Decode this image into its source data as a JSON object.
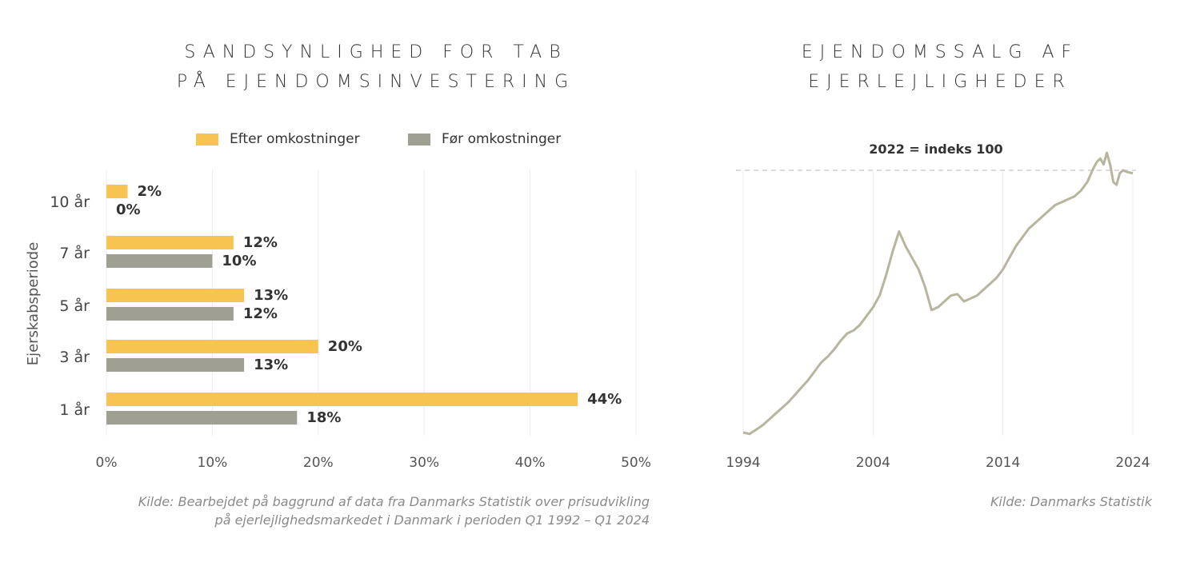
{
  "colors": {
    "after": "#F8C451",
    "before": "#A09F93",
    "line": "#B8B59E",
    "grid": "#ececec",
    "dashed": "#cfcfcf"
  },
  "left": {
    "title_lines": [
      "SANDSYNLIGHED FOR TAB",
      "PÅ EJENDOMSINVESTERING"
    ],
    "legend": [
      "Efter omkostninger",
      "Før omkostninger"
    ],
    "source_lines": [
      "Kilde: Bearbejdet på baggrund af data fra Danmarks Statistik over prisudvikling",
      "på ejerlejlighedsmarkedet i Danmark i perioden Q1  1992 – Q1 2024"
    ]
  },
  "right": {
    "title_lines": [
      "EJENDOMSSALG AF",
      "EJERLEJLIGHEDER"
    ],
    "annotation": "2022 = indeks 100",
    "source": "Kilde: Danmarks Statistik"
  },
  "chart_data": [
    {
      "type": "bar",
      "orientation": "horizontal",
      "title": "SANDSYNLIGHED FOR TAB PÅ EJENDOMSINVESTERING",
      "categories": [
        "10 år",
        "7 år",
        "5 år",
        "3 år",
        "1 år"
      ],
      "series": [
        {
          "name": "Efter omkostninger",
          "values": [
            2,
            12,
            13,
            20,
            44.5
          ],
          "labels": [
            "2%",
            "12%",
            "13%",
            "20%",
            "44%"
          ]
        },
        {
          "name": "Før omkostninger",
          "values": [
            0,
            10,
            12,
            13,
            18
          ],
          "labels": [
            "0%",
            "10%",
            "12%",
            "13%",
            "18%"
          ]
        }
      ],
      "ylabel": "Ejerskabsperiode",
      "xlim": [
        0,
        50
      ],
      "xticks": [
        0,
        10,
        20,
        30,
        40,
        50
      ],
      "xtick_labels": [
        "0%",
        "10%",
        "20%",
        "30%",
        "40%",
        "50%"
      ],
      "grid": "vertical",
      "legend_position": "top"
    },
    {
      "type": "line",
      "title": "EJENDOMSSALG AF EJERLEJLIGHEDER",
      "xlim": [
        1994,
        2024.5
      ],
      "ylim": [
        10,
        105
      ],
      "xticks": [
        1994,
        2004,
        2014,
        2024
      ],
      "xtick_labels": [
        "1994",
        "2004",
        "2014",
        "2024"
      ],
      "reference_line": 100,
      "series": [
        {
          "x": [
            1994,
            1994.5,
            1995,
            1995.5,
            1996,
            1996.5,
            1997,
            1997.5,
            1998,
            1998.5,
            1999,
            1999.5,
            2000,
            2000.5,
            2001,
            2001.5,
            2002,
            2002.5,
            2003,
            2003.5,
            2004,
            2004.5,
            2005,
            2005.5,
            2006,
            2006.5,
            2007,
            2007.5,
            2008,
            2008.5,
            2009,
            2009.5,
            2010,
            2010.5,
            2011,
            2011.5,
            2012,
            2012.5,
            2013,
            2013.5,
            2014,
            2014.5,
            2015,
            2015.5,
            2016,
            2016.5,
            2017,
            2017.5,
            2018,
            2018.5,
            2019,
            2019.5,
            2020,
            2020.5,
            2021,
            2021.25,
            2021.5,
            2021.75,
            2022,
            2022.25,
            2022.5,
            2022.75,
            2023,
            2023.25,
            2023.5,
            2023.75,
            2024
          ],
          "y": [
            10,
            9.5,
            11,
            12.5,
            14.5,
            16.5,
            18.5,
            20.5,
            23,
            25.5,
            28,
            31,
            34,
            36,
            38.5,
            41.5,
            44,
            45,
            47,
            50,
            53,
            57,
            64,
            72,
            79,
            74,
            70,
            66,
            60,
            52,
            53,
            55,
            57,
            57.5,
            55,
            56,
            57,
            59,
            61,
            63,
            66,
            70,
            74,
            77,
            80,
            82,
            84,
            86,
            88,
            89,
            90,
            91,
            93,
            96,
            101,
            103,
            104,
            102,
            106,
            102,
            96,
            95,
            99,
            100,
            99.5,
            99.2,
            99
          ]
        }
      ],
      "grid": "vertical"
    }
  ]
}
